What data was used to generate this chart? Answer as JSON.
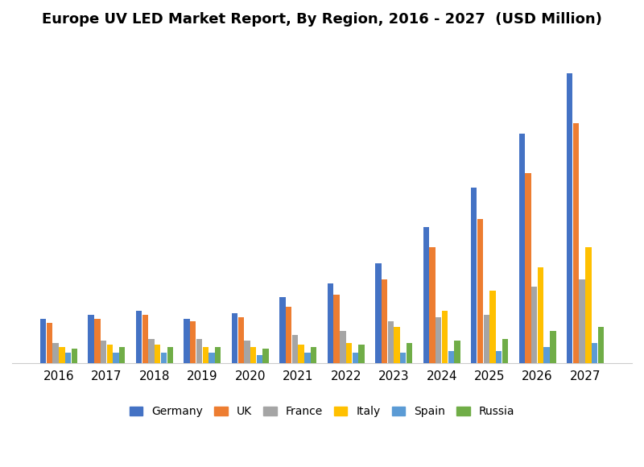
{
  "title": "Europe UV LED Market Report, By Region, 2016 - 2027  (USD Million)",
  "years": [
    2016,
    2017,
    2018,
    2019,
    2020,
    2021,
    2022,
    2023,
    2024,
    2025,
    2026,
    2027
  ],
  "series": {
    "Germany": [
      22,
      24,
      26,
      22,
      25,
      33,
      40,
      50,
      68,
      88,
      115,
      145
    ],
    "UK": [
      20,
      22,
      24,
      21,
      23,
      28,
      34,
      42,
      58,
      72,
      95,
      120
    ],
    "France": [
      10,
      11,
      12,
      12,
      11,
      14,
      16,
      21,
      23,
      24,
      38,
      42
    ],
    "Italy": [
      8,
      9,
      9,
      8,
      8,
      9,
      10,
      18,
      26,
      36,
      48,
      58
    ],
    "Spain": [
      5,
      5,
      5,
      5,
      4,
      5,
      5,
      5,
      6,
      6,
      8,
      10
    ],
    "Russia": [
      7,
      8,
      8,
      8,
      7,
      8,
      9,
      10,
      11,
      12,
      16,
      18
    ]
  },
  "colors": {
    "Germany": "#4472C4",
    "UK": "#ED7D31",
    "France": "#A5A5A5",
    "Italy": "#FFC000",
    "Spain": "#5B9BD5",
    "Russia": "#70AD47"
  },
  "background_color": "#FFFFFF",
  "title_fontsize": 13,
  "ylim": [
    0,
    160
  ],
  "bar_width": 0.13,
  "legend_labels": [
    "Germany",
    "UK",
    "France",
    "Italy",
    "Spain",
    "Russia"
  ]
}
